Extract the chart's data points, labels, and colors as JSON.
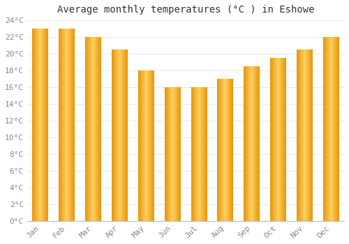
{
  "title": "Average monthly temperatures (°C ) in Eshowe",
  "months": [
    "Jan",
    "Feb",
    "Mar",
    "Apr",
    "May",
    "Jun",
    "Jul",
    "Aug",
    "Sep",
    "Oct",
    "Nov",
    "Dec"
  ],
  "values": [
    23,
    23,
    22,
    20.5,
    18,
    16,
    16,
    17,
    18.5,
    19.5,
    20.5,
    22
  ],
  "bar_color_main": "#FFBB33",
  "bar_color_edge": "#E8960A",
  "bar_color_left": "#F0A010",
  "bar_color_right": "#F0A010",
  "ylim": [
    0,
    24
  ],
  "yticks": [
    0,
    2,
    4,
    6,
    8,
    10,
    12,
    14,
    16,
    18,
    20,
    22,
    24
  ],
  "background_color": "#FFFFFF",
  "grid_color": "#DDDDDD",
  "title_fontsize": 10,
  "tick_fontsize": 8,
  "font_family": "monospace",
  "bar_width": 0.6
}
